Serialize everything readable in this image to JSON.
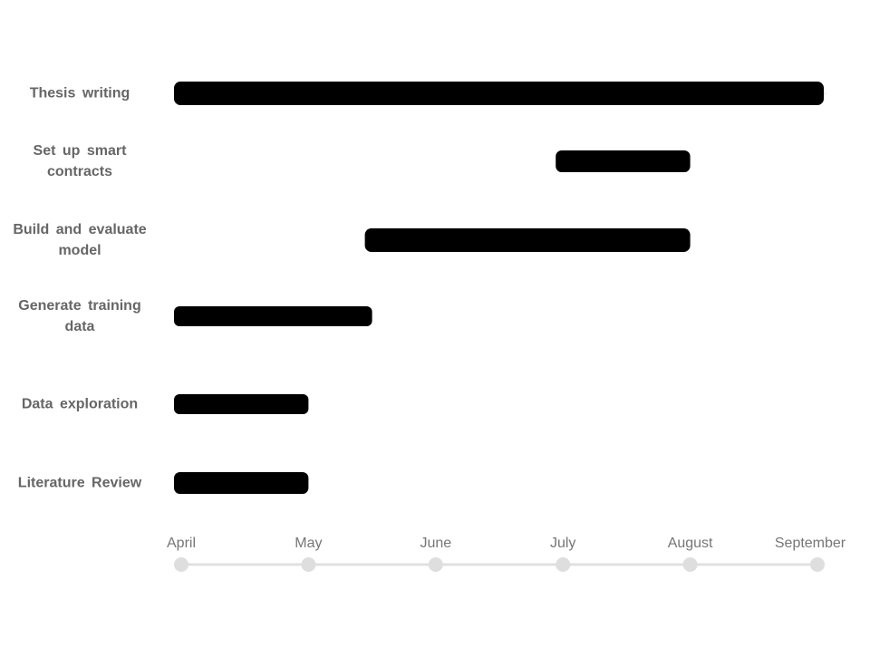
{
  "chart_data": {
    "type": "gantt",
    "title": "",
    "xlabel": "",
    "ylabel": "",
    "x_ticks": [
      "April",
      "May",
      "June",
      "July",
      "August",
      "September"
    ],
    "colors": {
      "bar": "#000000",
      "label": "#666666",
      "axis_line": "#e0e0e0",
      "axis_dot": "#dedede",
      "axis_text": "#767676"
    },
    "tasks": [
      {
        "name": "Thesis  writing",
        "start": 0.0,
        "end": 5.05
      },
      {
        "name": "Set up smart contracts",
        "start": 3.0,
        "end": 4.0
      },
      {
        "name": "Build  and evaluate  model",
        "start": 1.5,
        "end": 4.0
      },
      {
        "name": "Generate training  data",
        "start": 0.0,
        "end": 1.5
      },
      {
        "name": "Data exploration",
        "start": 0.0,
        "end": 1.0
      },
      {
        "name": "Literature Review",
        "start": 0.0,
        "end": 1.0
      }
    ]
  }
}
